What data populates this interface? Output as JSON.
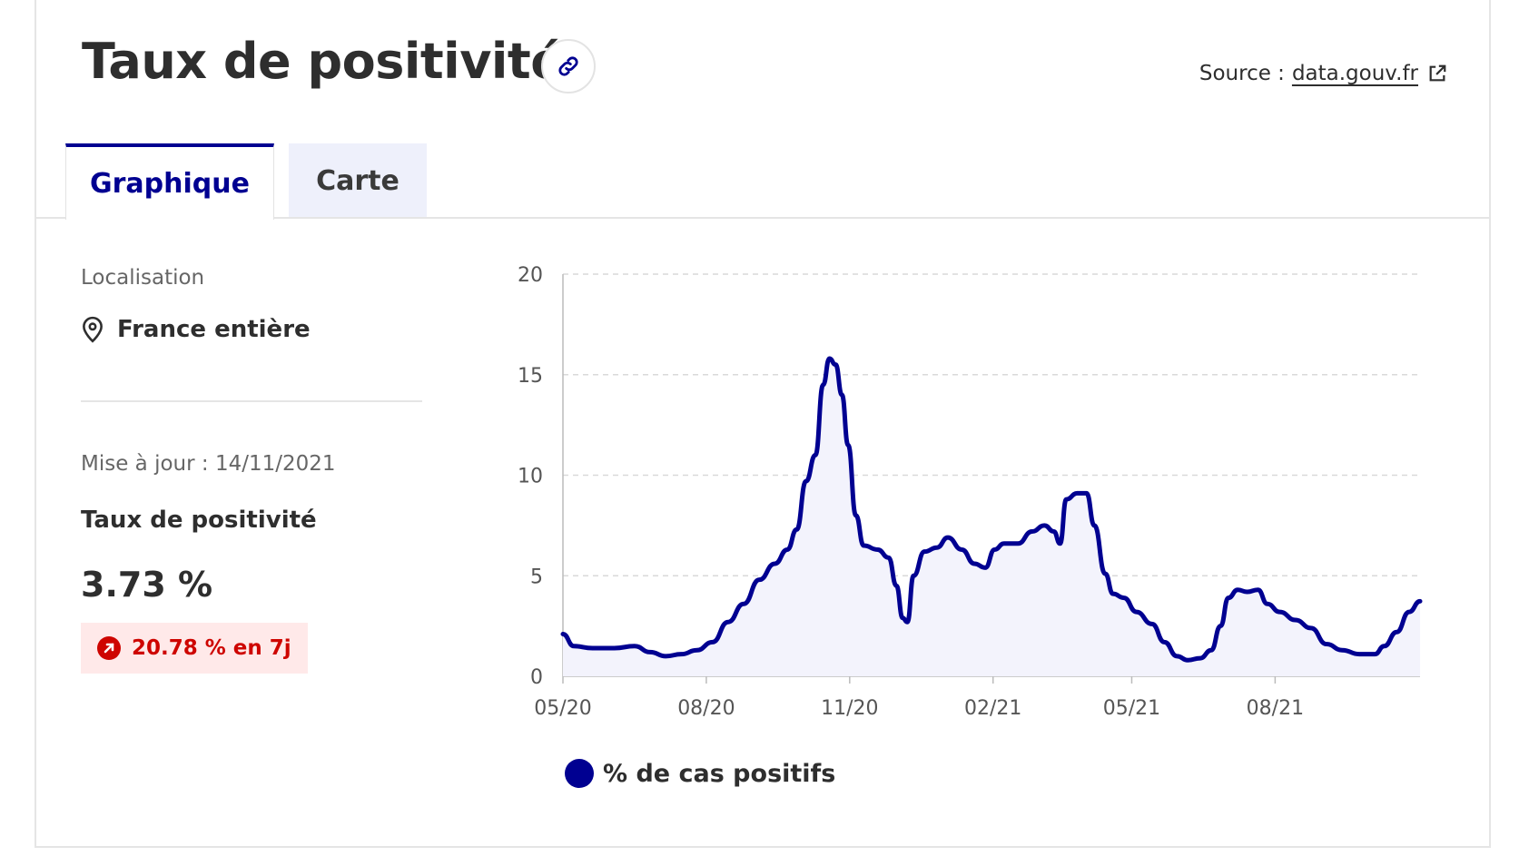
{
  "header": {
    "title": "Taux de positivité",
    "source_prefix": "Source :",
    "source_link": "data.gouv.fr"
  },
  "tabs": [
    {
      "label": "Graphique",
      "active": true
    },
    {
      "label": "Carte",
      "active": false
    }
  ],
  "sidebar": {
    "location_label": "Localisation",
    "location_value": "France entière",
    "update_text": "Mise à jour : 14/11/2021",
    "kpi_label": "Taux de positivité",
    "kpi_value": "3.73 %",
    "trend_text": "20.78 % en 7j"
  },
  "colors": {
    "accent": "#000091",
    "trend_negative": "#ce0500",
    "trend_bg": "#ffe9e9",
    "tab_inactive_bg": "#eef0fb"
  },
  "icons": {
    "link": "link-icon",
    "external": "external-link-icon",
    "location": "map-pin-icon",
    "trend": "arrow-up-right-icon"
  },
  "chart_data": {
    "type": "area",
    "title": "",
    "xlabel": "",
    "ylabel": "",
    "ylim": [
      0,
      20
    ],
    "yticks": [
      0,
      5,
      10,
      15,
      20
    ],
    "xticks": [
      {
        "label": "05/20",
        "value": "2020-05-13"
      },
      {
        "label": "08/20",
        "value": "2020-08-13"
      },
      {
        "label": "11/20",
        "value": "2020-11-13"
      },
      {
        "label": "02/21",
        "value": "2021-02-13"
      },
      {
        "label": "05/21",
        "value": "2021-05-13"
      },
      {
        "label": "08/21",
        "value": "2021-08-13"
      }
    ],
    "x_range": [
      "2020-05-13",
      "2021-11-14"
    ],
    "grid": true,
    "legend": "bottom",
    "series": [
      {
        "name": "% de cas positifs",
        "color": "#000091",
        "points": [
          [
            "2020-05-13",
            2.1
          ],
          [
            "2020-05-20",
            1.5
          ],
          [
            "2020-06-01",
            1.4
          ],
          [
            "2020-06-15",
            1.4
          ],
          [
            "2020-06-28",
            1.5
          ],
          [
            "2020-07-08",
            1.2
          ],
          [
            "2020-07-18",
            1.0
          ],
          [
            "2020-07-28",
            1.1
          ],
          [
            "2020-08-07",
            1.3
          ],
          [
            "2020-08-17",
            1.7
          ],
          [
            "2020-08-27",
            2.7
          ],
          [
            "2020-09-06",
            3.6
          ],
          [
            "2020-09-16",
            4.8
          ],
          [
            "2020-09-26",
            5.6
          ],
          [
            "2020-10-04",
            6.3
          ],
          [
            "2020-10-10",
            7.3
          ],
          [
            "2020-10-16",
            9.7
          ],
          [
            "2020-10-22",
            11.0
          ],
          [
            "2020-10-27",
            14.5
          ],
          [
            "2020-10-31",
            15.8
          ],
          [
            "2020-11-04",
            15.5
          ],
          [
            "2020-11-08",
            14.0
          ],
          [
            "2020-11-12",
            11.5
          ],
          [
            "2020-11-17",
            8.0
          ],
          [
            "2020-11-22",
            6.5
          ],
          [
            "2020-12-01",
            6.3
          ],
          [
            "2020-12-08",
            5.9
          ],
          [
            "2020-12-13",
            4.5
          ],
          [
            "2020-12-17",
            2.9
          ],
          [
            "2020-12-20",
            2.7
          ],
          [
            "2020-12-24",
            5.0
          ],
          [
            "2020-12-31",
            6.2
          ],
          [
            "2021-01-08",
            6.4
          ],
          [
            "2021-01-15",
            6.9
          ],
          [
            "2021-01-24",
            6.3
          ],
          [
            "2021-02-01",
            5.6
          ],
          [
            "2021-02-08",
            5.4
          ],
          [
            "2021-02-14",
            6.3
          ],
          [
            "2021-02-20",
            6.6
          ],
          [
            "2021-03-01",
            6.6
          ],
          [
            "2021-03-10",
            7.2
          ],
          [
            "2021-03-18",
            7.5
          ],
          [
            "2021-03-24",
            7.2
          ],
          [
            "2021-03-28",
            6.6
          ],
          [
            "2021-04-01",
            8.8
          ],
          [
            "2021-04-08",
            9.1
          ],
          [
            "2021-04-14",
            9.1
          ],
          [
            "2021-04-19",
            7.5
          ],
          [
            "2021-04-26",
            5.1
          ],
          [
            "2021-05-01",
            4.1
          ],
          [
            "2021-05-08",
            3.9
          ],
          [
            "2021-05-16",
            3.2
          ],
          [
            "2021-05-26",
            2.6
          ],
          [
            "2021-06-03",
            1.7
          ],
          [
            "2021-06-11",
            1.0
          ],
          [
            "2021-06-18",
            0.8
          ],
          [
            "2021-06-26",
            0.9
          ],
          [
            "2021-07-03",
            1.3
          ],
          [
            "2021-07-09",
            2.5
          ],
          [
            "2021-07-14",
            3.9
          ],
          [
            "2021-07-20",
            4.3
          ],
          [
            "2021-07-26",
            4.2
          ],
          [
            "2021-08-02",
            4.3
          ],
          [
            "2021-08-08",
            3.6
          ],
          [
            "2021-08-16",
            3.2
          ],
          [
            "2021-08-26",
            2.8
          ],
          [
            "2021-09-05",
            2.4
          ],
          [
            "2021-09-15",
            1.6
          ],
          [
            "2021-09-25",
            1.3
          ],
          [
            "2021-10-06",
            1.1
          ],
          [
            "2021-10-16",
            1.1
          ],
          [
            "2021-10-22",
            1.5
          ],
          [
            "2021-10-30",
            2.2
          ],
          [
            "2021-11-07",
            3.2
          ],
          [
            "2021-11-14",
            3.73
          ]
        ]
      }
    ]
  }
}
